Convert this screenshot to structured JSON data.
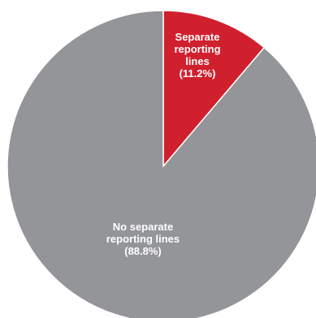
{
  "chart_data": {
    "type": "pie",
    "title": "",
    "start_angle_deg": 0,
    "direction": "clockwise",
    "slices": [
      {
        "label_lines": [
          "Separate",
          "reporting",
          "lines",
          "(11.2%)"
        ],
        "value": 11.2,
        "color": "#d0202e"
      },
      {
        "label_lines": [
          "No separate",
          "reporting lines",
          "(88.8%)"
        ],
        "value": 88.8,
        "color": "#939598"
      }
    ],
    "label_color": "#ffffff",
    "separator_color": "#ffffff"
  }
}
